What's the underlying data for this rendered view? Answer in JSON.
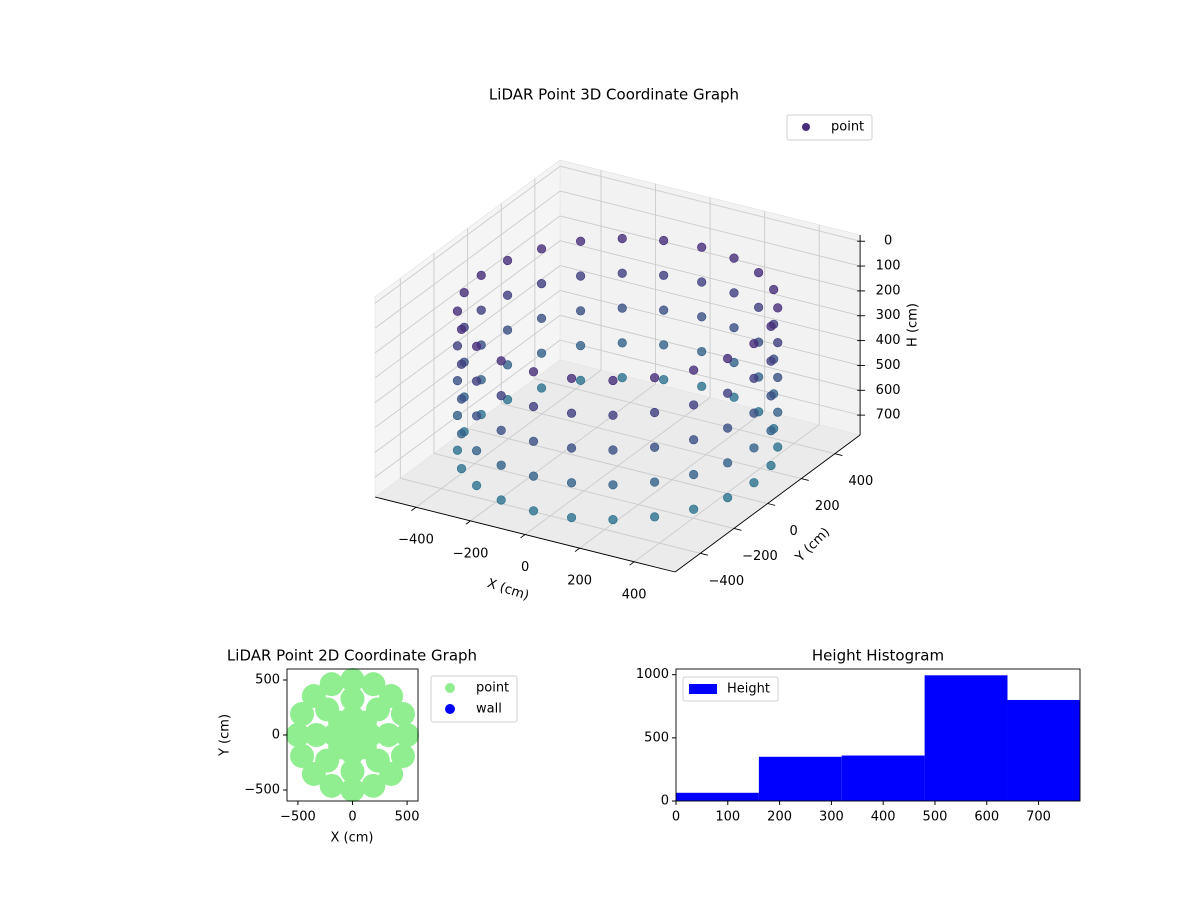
{
  "chart_data": [
    {
      "type": "scatter3d",
      "title": "LiDAR Point 3D Coordinate Graph",
      "xlabel": "X (cm)",
      "ylabel": "Y (cm)",
      "zlabel": "H (cm)",
      "xlim": [
        -550,
        550
      ],
      "ylim": [
        -550,
        550
      ],
      "zlim": [
        -25,
        780
      ],
      "xticks": [
        {
          "value": -400,
          "label": "−400"
        },
        {
          "value": -200,
          "label": "−200"
        },
        0,
        200,
        400
      ],
      "yticks": [
        {
          "value": -400,
          "label": "−400"
        },
        {
          "value": -200,
          "label": "−200"
        },
        0,
        200,
        400
      ],
      "zticks": [
        0,
        100,
        200,
        300,
        400,
        500,
        600,
        700
      ],
      "z_inverted": true,
      "grid": true,
      "legend": "upper right",
      "series": [
        {
          "name": "point",
          "color": "#472d7b",
          "colormap": [
            "#472d7b",
            "#2c728e"
          ],
          "x": [
            500,
            483,
            433,
            354,
            250,
            129,
            0,
            -129,
            -250,
            -354,
            -433,
            -483,
            -500,
            -483,
            -433,
            -354,
            -250,
            -129,
            0,
            129,
            250,
            354,
            433,
            483,
            500,
            483,
            433,
            354,
            250,
            129,
            0,
            -129,
            -250,
            -354,
            -433,
            -483,
            -500,
            -483,
            -433,
            -354,
            -250,
            -129,
            0,
            129,
            250,
            354,
            433,
            483,
            500,
            483,
            433,
            354,
            250,
            129,
            0,
            -129,
            -250,
            -354,
            -433,
            -483,
            -500,
            -483,
            -433,
            -354,
            -250,
            -129,
            0,
            129,
            250,
            354,
            433,
            483,
            500,
            483,
            433,
            354,
            250,
            129,
            0,
            -129,
            -250,
            -354,
            -433,
            -483,
            -500,
            -483,
            -433,
            -354,
            -250,
            -129,
            0,
            129,
            250,
            354,
            433,
            483,
            500,
            483,
            433,
            354,
            250,
            129,
            0,
            -129,
            -250,
            -354,
            -433,
            -483,
            -500,
            -483,
            -433,
            -354,
            -250,
            -129,
            0,
            129,
            250,
            354,
            433,
            483
          ],
          "y": [
            0,
            129,
            250,
            354,
            433,
            483,
            500,
            483,
            433,
            354,
            250,
            129,
            0,
            -129,
            -250,
            -354,
            -433,
            -483,
            -500,
            -483,
            -433,
            -354,
            -250,
            -129,
            0,
            129,
            250,
            354,
            433,
            483,
            500,
            483,
            433,
            354,
            250,
            129,
            0,
            -129,
            -250,
            -354,
            -433,
            -483,
            -500,
            -483,
            -433,
            -354,
            -250,
            -129,
            0,
            129,
            250,
            354,
            433,
            483,
            500,
            483,
            433,
            354,
            250,
            129,
            0,
            -129,
            -250,
            -354,
            -433,
            -483,
            -500,
            -483,
            -433,
            -354,
            -250,
            -129,
            0,
            129,
            250,
            354,
            433,
            483,
            500,
            483,
            433,
            354,
            250,
            129,
            0,
            -129,
            -250,
            -354,
            -433,
            -483,
            -500,
            -483,
            -433,
            -354,
            -250,
            -129,
            0,
            129,
            250,
            354,
            433,
            483,
            500,
            483,
            433,
            354,
            250,
            129,
            0,
            -129,
            -250,
            -354,
            -433,
            -483,
            -500,
            -483,
            -433,
            -354,
            -250,
            -129
          ],
          "z": [
            150,
            150,
            150,
            150,
            150,
            150,
            150,
            150,
            150,
            150,
            150,
            150,
            150,
            150,
            150,
            150,
            150,
            150,
            150,
            150,
            150,
            150,
            150,
            150,
            290,
            290,
            290,
            290,
            290,
            290,
            290,
            290,
            290,
            290,
            290,
            290,
            290,
            290,
            290,
            290,
            290,
            290,
            290,
            290,
            290,
            290,
            290,
            290,
            430,
            430,
            430,
            430,
            430,
            430,
            430,
            430,
            430,
            430,
            430,
            430,
            430,
            430,
            430,
            430,
            430,
            430,
            430,
            430,
            430,
            430,
            430,
            430,
            570,
            570,
            570,
            570,
            570,
            570,
            570,
            570,
            570,
            570,
            570,
            570,
            570,
            570,
            570,
            570,
            570,
            570,
            570,
            570,
            570,
            570,
            570,
            570,
            710,
            710,
            710,
            710,
            710,
            710,
            710,
            710,
            710,
            710,
            710,
            710,
            710,
            710,
            710,
            710,
            710,
            710,
            710,
            710,
            710,
            710,
            710,
            710
          ]
        }
      ]
    },
    {
      "type": "scatter",
      "title": "LiDAR Point 2D Coordinate Graph",
      "xlabel": "X (cm)",
      "ylabel": "Y (cm)",
      "xlim": [
        -600,
        600
      ],
      "ylim": [
        -600,
        600
      ],
      "xticks": [
        {
          "value": -500,
          "label": "−500"
        },
        0,
        500
      ],
      "yticks": [
        {
          "value": -500,
          "label": "−500"
        },
        0,
        500
      ],
      "legend": "outside upper right",
      "series": [
        {
          "name": "point",
          "color": "#90ee90",
          "x": [
            500,
            462,
            354,
            191,
            0,
            -191,
            -354,
            -462,
            -500,
            -462,
            -354,
            -191,
            0,
            191,
            354,
            462,
            330,
            233,
            0,
            -233,
            -330,
            -233,
            0,
            233,
            160,
            113,
            0,
            -113,
            -160,
            -113,
            0,
            113,
            0
          ],
          "y": [
            0,
            191,
            354,
            462,
            500,
            462,
            354,
            191,
            0,
            -191,
            -354,
            -462,
            -500,
            -462,
            -354,
            -191,
            0,
            233,
            330,
            233,
            0,
            -233,
            -330,
            -233,
            0,
            113,
            160,
            113,
            0,
            -113,
            -160,
            -113,
            0
          ]
        },
        {
          "name": "wall",
          "color": "#0000ff",
          "x": [],
          "y": []
        }
      ]
    },
    {
      "type": "histogram",
      "title": "Height Histogram",
      "name": "Height",
      "color": "#0000ff",
      "bins": [
        0,
        160,
        320,
        480,
        640,
        780
      ],
      "counts": [
        65,
        350,
        360,
        995,
        800
      ],
      "xlim": [
        0,
        780
      ],
      "ylim": [
        0,
        1045
      ],
      "xticks": [
        0,
        100,
        200,
        300,
        400,
        500,
        600,
        700
      ],
      "yticks": [
        0,
        500,
        1000
      ],
      "legend": "upper left"
    }
  ]
}
